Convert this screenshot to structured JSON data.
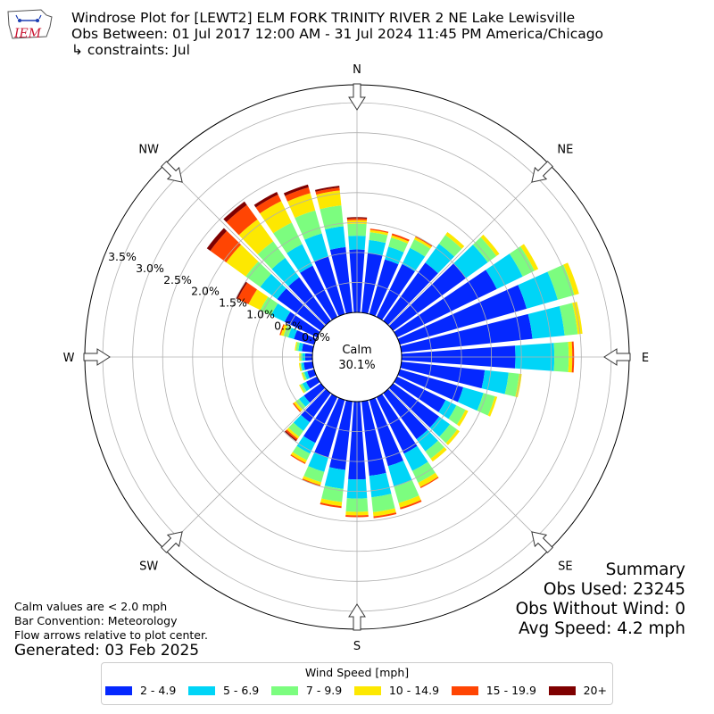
{
  "header": {
    "logo_text": "IEM",
    "title_line1": "Windrose Plot for [LEWT2] ELM FORK TRINITY RIVER 2 NE Lake Lewisville",
    "title_line2": "Obs Between: 01 Jul 2017 12:00 AM - 31 Jul 2024 11:45 PM America/Chicago",
    "title_line3": "↳ constraints: Jul"
  },
  "notes": {
    "calm_note": "Calm values are < 2.0 mph",
    "bar_convention": "Bar Convention: Meteorology",
    "flow_note": "Flow arrows relative to plot center.",
    "generated": "Generated: 03 Feb 2025"
  },
  "summary": {
    "title": "Summary",
    "obs_used": "Obs Used: 23245",
    "obs_without_wind": "Obs Without Wind: 0",
    "avg_speed": "Avg Speed: 4.2 mph"
  },
  "legend": {
    "title": "Wind Speed [mph]",
    "items": [
      {
        "label": "2 - 4.9",
        "color": "#0528ff"
      },
      {
        "label": "5 - 6.9",
        "color": "#00d5f7"
      },
      {
        "label": "7 - 9.9",
        "color": "#7cfd7f"
      },
      {
        "label": "10 - 14.9",
        "color": "#fde801"
      },
      {
        "label": "15 - 19.9",
        "color": "#ff4503"
      },
      {
        "label": "20+",
        "color": "#7f0000"
      }
    ]
  },
  "chart_data": {
    "type": "windrose",
    "calm_label": "Calm",
    "calm_value": "30.1%",
    "radial_ticks": [
      "0.0%",
      "0.5%",
      "1.0%",
      "1.5%",
      "2.0%",
      "2.5%",
      "3.0%",
      "3.5%"
    ],
    "radial_max": 3.8,
    "compass": [
      "N",
      "NE",
      "E",
      "SE",
      "S",
      "SW",
      "W",
      "NW"
    ],
    "bins": [
      "2 - 4.9",
      "5 - 6.9",
      "7 - 9.9",
      "10 - 14.9",
      "15 - 19.9",
      "20+"
    ],
    "colors": [
      "#0528ff",
      "#00d5f7",
      "#7cfd7f",
      "#fde801",
      "#ff4503",
      "#7f0000"
    ],
    "directions": [
      0,
      10,
      20,
      30,
      40,
      50,
      60,
      70,
      80,
      90,
      100,
      110,
      120,
      130,
      140,
      150,
      160,
      170,
      180,
      190,
      200,
      210,
      220,
      230,
      240,
      250,
      260,
      270,
      280,
      290,
      300,
      310,
      320,
      330,
      340,
      350
    ],
    "values": [
      [
        1.05,
        0.23,
        0.2,
        0.06,
        0.03,
        0.02
      ],
      [
        1.0,
        0.22,
        0.13,
        0.04,
        0.02,
        0.0
      ],
      [
        0.95,
        0.22,
        0.16,
        0.04,
        0.03,
        0.0
      ],
      [
        0.98,
        0.3,
        0.16,
        0.04,
        0.02,
        0.0
      ],
      [
        1.2,
        0.39,
        0.18,
        0.06,
        0.0,
        0.0
      ],
      [
        1.5,
        0.45,
        0.18,
        0.06,
        0.0,
        0.0
      ],
      [
        1.85,
        0.48,
        0.22,
        0.07,
        0.0,
        0.0
      ],
      [
        2.2,
        0.54,
        0.29,
        0.08,
        0.0,
        0.0
      ],
      [
        2.2,
        0.54,
        0.22,
        0.08,
        0.0,
        0.0
      ],
      [
        1.9,
        0.65,
        0.24,
        0.06,
        0.03,
        0.0
      ],
      [
        1.4,
        0.4,
        0.18,
        0.04,
        0.0,
        0.0
      ],
      [
        1.1,
        0.35,
        0.2,
        0.04,
        0.0,
        0.0
      ],
      [
        0.9,
        0.2,
        0.17,
        0.05,
        0.0,
        0.0
      ],
      [
        0.95,
        0.22,
        0.15,
        0.05,
        0.0,
        0.0
      ],
      [
        0.95,
        0.25,
        0.15,
        0.06,
        0.0,
        0.0
      ],
      [
        1.05,
        0.32,
        0.22,
        0.08,
        0.02,
        0.0
      ],
      [
        1.15,
        0.36,
        0.28,
        0.08,
        0.03,
        0.0
      ],
      [
        1.25,
        0.36,
        0.25,
        0.07,
        0.03,
        0.0
      ],
      [
        1.3,
        0.32,
        0.22,
        0.06,
        0.03,
        0.0
      ],
      [
        1.15,
        0.32,
        0.22,
        0.07,
        0.03,
        0.0
      ],
      [
        1.0,
        0.25,
        0.18,
        0.05,
        0.02,
        0.0
      ],
      [
        0.85,
        0.2,
        0.12,
        0.05,
        0.02,
        0.0
      ],
      [
        0.6,
        0.18,
        0.12,
        0.04,
        0.03,
        0.02
      ],
      [
        0.35,
        0.1,
        0.07,
        0.04,
        0.02,
        0.0
      ],
      [
        0.2,
        0.07,
        0.04,
        0.02,
        0.0,
        0.0
      ],
      [
        0.12,
        0.05,
        0.03,
        0.02,
        0.0,
        0.0
      ],
      [
        0.15,
        0.04,
        0.02,
        0.02,
        0.0,
        0.0
      ],
      [
        0.12,
        0.05,
        0.03,
        0.02,
        0.0,
        0.0
      ],
      [
        0.18,
        0.06,
        0.04,
        0.02,
        0.0,
        0.0
      ],
      [
        0.35,
        0.1,
        0.08,
        0.05,
        0.02,
        0.0
      ],
      [
        0.6,
        0.25,
        0.2,
        0.22,
        0.2,
        0.03
      ],
      [
        0.9,
        0.35,
        0.3,
        0.4,
        0.33,
        0.07
      ],
      [
        0.9,
        0.4,
        0.34,
        0.45,
        0.3,
        0.07
      ],
      [
        0.95,
        0.4,
        0.4,
        0.4,
        0.12,
        0.05
      ],
      [
        1.0,
        0.4,
        0.4,
        0.3,
        0.1,
        0.05
      ],
      [
        1.1,
        0.35,
        0.35,
        0.25,
        0.05,
        0.03
      ]
    ]
  }
}
